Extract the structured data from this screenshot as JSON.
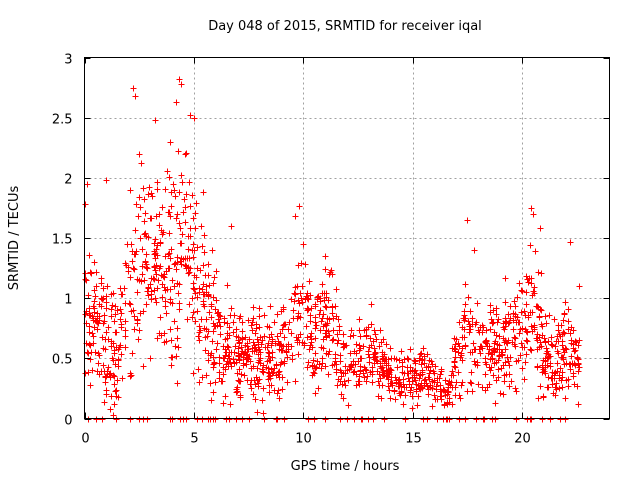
{
  "chart_data": {
    "type": "scatter",
    "title": "Day 048 of 2015, SRMTID for receiver iqal",
    "xlabel": "GPS time / hours",
    "ylabel": "SRMTID / TECUs",
    "xlim": [
      0,
      24
    ],
    "ylim": [
      0,
      3
    ],
    "xticks": [
      0,
      5,
      10,
      15,
      20
    ],
    "xtick_labels": [
      "0",
      "5",
      "10",
      "15",
      "20"
    ],
    "yticks": [
      0,
      0.5,
      1,
      1.5,
      2,
      2.5,
      3
    ],
    "ytick_labels": [
      "0",
      "0.5",
      "1",
      "1.5",
      "2",
      "2.5",
      "3"
    ],
    "grid": true,
    "marker": "+",
    "marker_color": "#ff0000",
    "series": [
      {
        "name": "SRMTID",
        "color": "#ff0000",
        "activity_profile": [
          [
            0.0,
            1.0,
            0.45
          ],
          [
            0.5,
            0.75,
            0.35
          ],
          [
            1.0,
            0.6,
            0.45
          ],
          [
            1.5,
            0.55,
            0.4
          ],
          [
            2.0,
            1.1,
            0.6
          ],
          [
            2.5,
            1.2,
            0.6
          ],
          [
            3.0,
            1.3,
            0.55
          ],
          [
            3.5,
            1.2,
            0.5
          ],
          [
            4.0,
            1.1,
            0.7
          ],
          [
            4.5,
            1.35,
            0.6
          ],
          [
            5.0,
            1.25,
            0.55
          ],
          [
            5.5,
            0.95,
            0.5
          ],
          [
            6.0,
            0.7,
            0.35
          ],
          [
            6.5,
            0.55,
            0.3
          ],
          [
            7.0,
            0.55,
            0.28
          ],
          [
            7.5,
            0.55,
            0.28
          ],
          [
            8.0,
            0.55,
            0.3
          ],
          [
            8.5,
            0.5,
            0.28
          ],
          [
            9.0,
            0.6,
            0.3
          ],
          [
            9.5,
            0.8,
            0.35
          ],
          [
            10.0,
            1.0,
            0.4
          ],
          [
            10.5,
            0.55,
            0.3
          ],
          [
            11.0,
            0.8,
            0.35
          ],
          [
            11.5,
            0.6,
            0.3
          ],
          [
            12.0,
            0.5,
            0.25
          ],
          [
            12.5,
            0.5,
            0.22
          ],
          [
            13.0,
            0.55,
            0.25
          ],
          [
            13.5,
            0.5,
            0.22
          ],
          [
            14.0,
            0.35,
            0.15
          ],
          [
            14.5,
            0.33,
            0.15
          ],
          [
            15.0,
            0.35,
            0.15
          ],
          [
            15.5,
            0.35,
            0.15
          ],
          [
            16.0,
            0.3,
            0.15
          ],
          [
            16.5,
            0.18,
            0.08
          ],
          [
            17.0,
            0.45,
            0.25
          ],
          [
            17.5,
            0.8,
            0.35
          ],
          [
            18.0,
            0.55,
            0.3
          ],
          [
            18.5,
            0.6,
            0.3
          ],
          [
            19.0,
            0.55,
            0.3
          ],
          [
            19.5,
            0.65,
            0.3
          ],
          [
            20.0,
            0.8,
            0.35
          ],
          [
            20.5,
            0.95,
            0.4
          ],
          [
            21.0,
            0.55,
            0.3
          ],
          [
            21.5,
            0.5,
            0.3
          ],
          [
            22.0,
            0.6,
            0.3
          ],
          [
            22.5,
            0.5,
            0.25
          ]
        ],
        "x_end": 22.6,
        "notable_points": [
          [
            2.2,
            2.75
          ],
          [
            2.3,
            2.68
          ],
          [
            4.3,
            2.82
          ],
          [
            4.4,
            2.78
          ],
          [
            4.2,
            2.63
          ],
          [
            4.8,
            2.52
          ],
          [
            5.0,
            2.5
          ],
          [
            3.2,
            2.48
          ],
          [
            2.5,
            2.2
          ],
          [
            2.6,
            2.12
          ],
          [
            3.9,
            2.3
          ],
          [
            4.6,
            2.2
          ],
          [
            0.1,
            1.95
          ],
          [
            0.0,
            1.78
          ],
          [
            1.0,
            1.98
          ],
          [
            2.1,
            1.9
          ],
          [
            3.1,
            1.85
          ],
          [
            3.4,
            1.7
          ],
          [
            4.3,
            1.88
          ],
          [
            5.4,
            1.88
          ],
          [
            6.7,
            1.6
          ],
          [
            9.8,
            1.77
          ],
          [
            9.6,
            1.68
          ],
          [
            10.0,
            1.45
          ],
          [
            11.0,
            1.35
          ],
          [
            11.3,
            1.2
          ],
          [
            17.5,
            1.65
          ],
          [
            17.8,
            1.4
          ],
          [
            20.4,
            1.75
          ],
          [
            20.5,
            1.7
          ],
          [
            20.8,
            1.58
          ],
          [
            22.2,
            1.47
          ],
          [
            22.6,
            1.1
          ]
        ]
      }
    ]
  }
}
